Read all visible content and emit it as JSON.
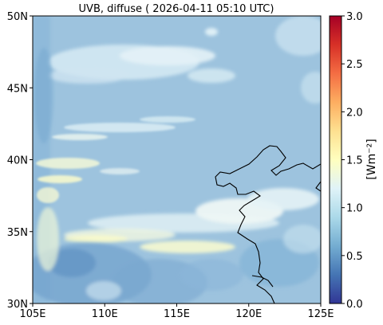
{
  "title": "UVB, diffuse ( 2026-04-11 05:10 UTC)",
  "map": {
    "lon_range": [
      105,
      125
    ],
    "lat_range": [
      30,
      50
    ],
    "x_ticks": [
      {
        "value": 105,
        "label": "105E"
      },
      {
        "value": 110,
        "label": "110E"
      },
      {
        "value": 115,
        "label": "115E"
      },
      {
        "value": 120,
        "label": "120E"
      },
      {
        "value": 125,
        "label": "125E"
      }
    ],
    "y_ticks": [
      {
        "value": 30,
        "label": "30N"
      },
      {
        "value": 35,
        "label": "35N"
      },
      {
        "value": 40,
        "label": "40N"
      },
      {
        "value": 45,
        "label": "45N"
      },
      {
        "value": 50,
        "label": "50N"
      }
    ],
    "background_color": "#9dc3de"
  },
  "colorbar": {
    "label": "[Wm⁻²]",
    "range": [
      0,
      3
    ],
    "ticks": [
      {
        "value": 0,
        "label": "0.0"
      },
      {
        "value": 0.5,
        "label": "0.5"
      },
      {
        "value": 1,
        "label": "1.0"
      },
      {
        "value": 1.5,
        "label": "1.5"
      },
      {
        "value": 2,
        "label": "2.0"
      },
      {
        "value": 2.5,
        "label": "2.5"
      },
      {
        "value": 3,
        "label": "3.0"
      }
    ],
    "colormap": "RdYlBu_r",
    "stops": [
      "#313695",
      "#4575b4",
      "#74add1",
      "#abd9e9",
      "#e0f3f8",
      "#ffffbf",
      "#fee090",
      "#fdae61",
      "#f46d43",
      "#d73027",
      "#a50026"
    ]
  }
}
